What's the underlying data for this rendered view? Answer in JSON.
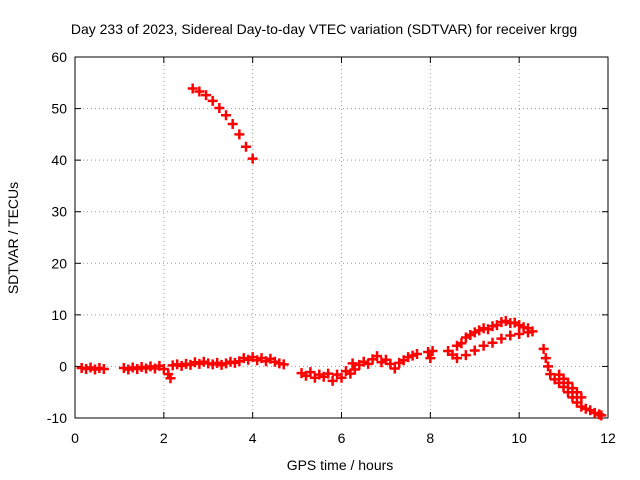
{
  "chart_data": {
    "type": "scatter",
    "title": "Day 233 of 2023, Sidereal Day-to-day VTEC variation (SDTVAR) for receiver krgg",
    "xlabel": "GPS time / hours",
    "ylabel": "SDTVAR / TECUs",
    "xlim": [
      0,
      12
    ],
    "ylim": [
      -10,
      60
    ],
    "xticks": [
      "0",
      "2",
      "4",
      "6",
      "8",
      "10",
      "12"
    ],
    "yticks": [
      "-10",
      "0",
      "10",
      "20",
      "30",
      "40",
      "50",
      "60"
    ],
    "grid": true,
    "legend": "none",
    "marker": "plus",
    "color": "#ff0000",
    "series": [
      {
        "points": [
          [
            0.15,
            -0.3
          ],
          [
            0.25,
            -0.5
          ],
          [
            0.35,
            -0.2
          ],
          [
            0.45,
            -0.6
          ],
          [
            0.55,
            -0.3
          ],
          [
            0.65,
            -0.5
          ],
          [
            1.1,
            -0.3
          ],
          [
            1.2,
            -0.6
          ],
          [
            1.3,
            -0.2
          ],
          [
            1.4,
            -0.5
          ],
          [
            1.5,
            -0.1
          ],
          [
            1.6,
            -0.4
          ],
          [
            1.7,
            0.0
          ],
          [
            1.8,
            -0.4
          ],
          [
            1.9,
            0.1
          ],
          [
            2.0,
            -0.5
          ],
          [
            2.1,
            -1.5
          ],
          [
            2.15,
            -2.3
          ],
          [
            2.2,
            0.2
          ],
          [
            2.3,
            0.4
          ],
          [
            2.4,
            0.1
          ],
          [
            2.5,
            0.5
          ],
          [
            2.6,
            0.3
          ],
          [
            2.7,
            0.8
          ],
          [
            2.8,
            0.5
          ],
          [
            2.9,
            0.9
          ],
          [
            3.0,
            0.6
          ],
          [
            3.1,
            0.4
          ],
          [
            3.2,
            0.7
          ],
          [
            3.3,
            0.3
          ],
          [
            3.4,
            0.6
          ],
          [
            3.5,
            0.9
          ],
          [
            3.6,
            0.7
          ],
          [
            3.7,
            1.0
          ],
          [
            3.8,
            1.6
          ],
          [
            3.9,
            1.3
          ],
          [
            4.0,
            1.8
          ],
          [
            4.1,
            1.2
          ],
          [
            4.2,
            1.6
          ],
          [
            4.3,
            1.0
          ],
          [
            4.4,
            1.5
          ],
          [
            4.5,
            0.9
          ],
          [
            4.6,
            0.6
          ],
          [
            4.7,
            0.4
          ],
          [
            5.1,
            -1.3
          ],
          [
            5.2,
            -1.8
          ],
          [
            5.3,
            -1.1
          ],
          [
            5.4,
            -2.2
          ],
          [
            5.5,
            -1.6
          ],
          [
            5.6,
            -2.0
          ],
          [
            5.7,
            -1.4
          ],
          [
            5.8,
            -2.8
          ],
          [
            5.9,
            -1.6
          ],
          [
            6.0,
            -2.2
          ],
          [
            6.1,
            -0.9
          ],
          [
            6.2,
            -1.4
          ],
          [
            6.25,
            0.6
          ],
          [
            6.3,
            -0.6
          ],
          [
            6.4,
            0.3
          ],
          [
            6.5,
            0.9
          ],
          [
            6.6,
            0.5
          ],
          [
            6.7,
            1.4
          ],
          [
            6.8,
            2.0
          ],
          [
            6.9,
            0.8
          ],
          [
            7.0,
            1.3
          ],
          [
            7.1,
            0.5
          ],
          [
            7.2,
            -0.4
          ],
          [
            7.3,
            0.7
          ],
          [
            7.4,
            1.2
          ],
          [
            7.5,
            1.8
          ],
          [
            7.6,
            2.1
          ],
          [
            7.7,
            2.4
          ],
          [
            7.95,
            2.8
          ],
          [
            8.0,
            1.6
          ],
          [
            8.05,
            3.0
          ],
          [
            8.4,
            3.0
          ],
          [
            8.5,
            2.3
          ],
          [
            8.6,
            4.0
          ],
          [
            8.7,
            4.5
          ],
          [
            8.8,
            5.6
          ],
          [
            8.9,
            6.1
          ],
          [
            9.0,
            6.6
          ],
          [
            9.1,
            7.0
          ],
          [
            9.2,
            7.4
          ],
          [
            9.3,
            7.2
          ],
          [
            9.4,
            7.8
          ],
          [
            9.5,
            8.0
          ],
          [
            9.6,
            8.6
          ],
          [
            9.7,
            8.8
          ],
          [
            9.8,
            8.4
          ],
          [
            9.9,
            8.5
          ],
          [
            10.0,
            8.0
          ],
          [
            10.1,
            7.6
          ],
          [
            10.2,
            7.4
          ],
          [
            10.3,
            6.8
          ],
          [
            8.6,
            1.6
          ],
          [
            8.8,
            2.2
          ],
          [
            9.0,
            3.1
          ],
          [
            9.2,
            4.0
          ],
          [
            9.4,
            4.6
          ],
          [
            9.6,
            5.4
          ],
          [
            9.8,
            6.0
          ],
          [
            10.0,
            6.3
          ],
          [
            10.2,
            6.6
          ],
          [
            10.55,
            3.4
          ],
          [
            10.6,
            1.6
          ],
          [
            10.65,
            0.0
          ],
          [
            10.7,
            -1.5
          ],
          [
            10.8,
            -2.5
          ],
          [
            10.9,
            -3.2
          ],
          [
            11.0,
            -4.0
          ],
          [
            11.1,
            -5.0
          ],
          [
            11.2,
            -6.0
          ],
          [
            11.3,
            -7.0
          ],
          [
            11.4,
            -7.8
          ],
          [
            11.5,
            -8.2
          ],
          [
            11.6,
            -8.5
          ],
          [
            11.7,
            -9.0
          ],
          [
            11.8,
            -9.3
          ],
          [
            11.85,
            -9.5
          ],
          [
            10.9,
            -1.6
          ],
          [
            11.0,
            -2.4
          ],
          [
            11.1,
            -3.2
          ],
          [
            11.2,
            -4.2
          ],
          [
            11.3,
            -5.0
          ],
          [
            11.4,
            -6.0
          ],
          [
            2.65,
            53.9
          ],
          [
            2.8,
            53.3
          ],
          [
            2.95,
            52.6
          ],
          [
            3.1,
            51.5
          ],
          [
            3.25,
            50.1
          ],
          [
            3.4,
            48.7
          ],
          [
            3.55,
            47.0
          ],
          [
            3.7,
            45.0
          ],
          [
            3.85,
            42.6
          ],
          [
            4.0,
            40.3
          ]
        ]
      }
    ]
  }
}
